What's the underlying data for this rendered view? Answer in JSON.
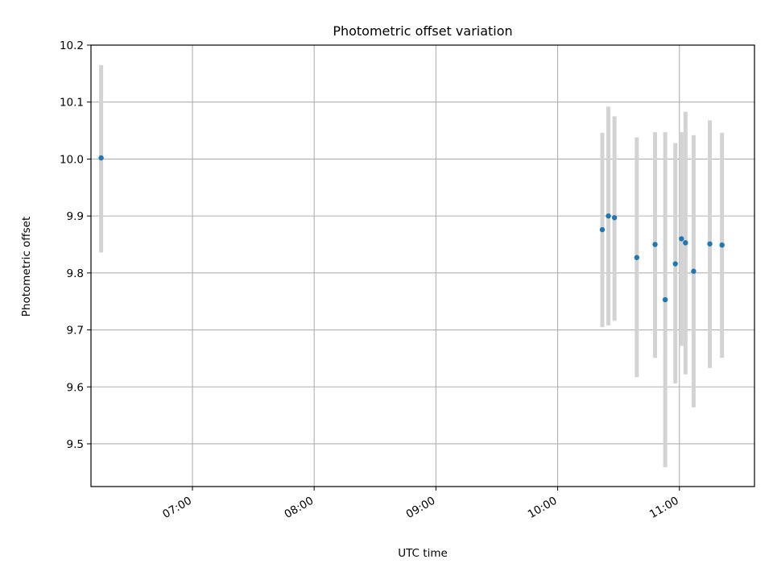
{
  "chart_data": {
    "type": "scatter",
    "title": "Photometric offset variation",
    "xlabel": "UTC time",
    "ylabel": "Photometric offset",
    "x_ticks": [
      "07:00",
      "08:00",
      "09:00",
      "10:00",
      "11:00"
    ],
    "y_ticks": [
      "9.5",
      "9.6",
      "9.7",
      "9.8",
      "9.9",
      "10.0",
      "10.1",
      "10.2"
    ],
    "xlim": [
      "06:10",
      "11:37"
    ],
    "ylim": [
      9.425,
      10.2
    ],
    "grid": true,
    "error_bar_color": "#d3d3d3",
    "marker_color": "#1f77b4",
    "points": [
      {
        "x": "06:15",
        "y": 10.002,
        "yerr_low": 9.836,
        "yerr_high": 10.165
      },
      {
        "x": "10:22",
        "y": 9.876,
        "yerr_low": 9.705,
        "yerr_high": 10.046
      },
      {
        "x": "10:25",
        "y": 9.9,
        "yerr_low": 9.708,
        "yerr_high": 10.092
      },
      {
        "x": "10:28",
        "y": 9.897,
        "yerr_low": 9.716,
        "yerr_high": 10.075
      },
      {
        "x": "10:39",
        "y": 9.827,
        "yerr_low": 9.617,
        "yerr_high": 10.038
      },
      {
        "x": "10:48",
        "y": 9.85,
        "yerr_low": 9.651,
        "yerr_high": 10.047
      },
      {
        "x": "10:53",
        "y": 9.753,
        "yerr_low": 9.459,
        "yerr_high": 10.047
      },
      {
        "x": "10:58",
        "y": 9.816,
        "yerr_low": 9.606,
        "yerr_high": 10.028
      },
      {
        "x": "11:01",
        "y": 9.86,
        "yerr_low": 9.672,
        "yerr_high": 10.047
      },
      {
        "x": "11:03",
        "y": 9.853,
        "yerr_low": 9.622,
        "yerr_high": 10.083
      },
      {
        "x": "11:07",
        "y": 9.803,
        "yerr_low": 9.564,
        "yerr_high": 10.042
      },
      {
        "x": "11:15",
        "y": 9.851,
        "yerr_low": 9.633,
        "yerr_high": 10.068
      },
      {
        "x": "11:21",
        "y": 9.849,
        "yerr_low": 9.651,
        "yerr_high": 10.046
      }
    ]
  }
}
